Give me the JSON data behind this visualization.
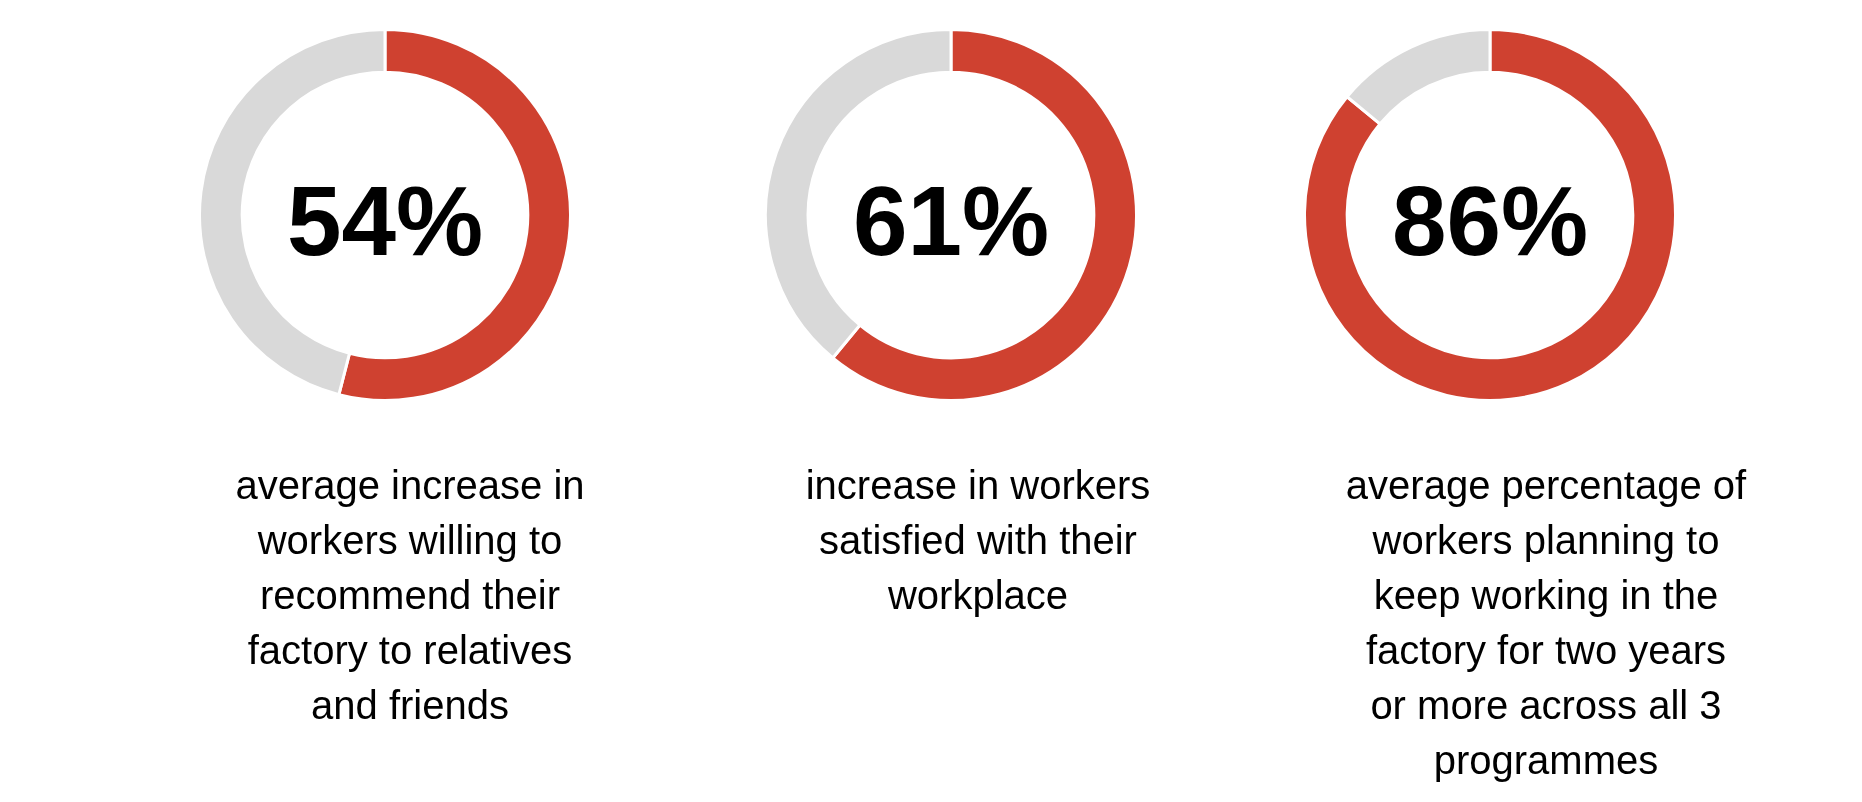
{
  "chart_data": [
    {
      "type": "donut",
      "title": "average increase in workers willing to recommend their factory to relatives and friends",
      "categories": [
        null,
        null
      ],
      "values": [
        54,
        46
      ],
      "colors": [
        "#cf4130",
        "#d9d9d9"
      ],
      "value_labels": [
        "54%",
        null
      ]
    },
    {
      "type": "donut",
      "title": "increase in workers satisfied with their workplace",
      "categories": [
        null,
        null
      ],
      "values": [
        61,
        39
      ],
      "colors": [
        "#cf4130",
        "#d9d9d9"
      ],
      "value_labels": [
        "61%",
        null
      ]
    },
    {
      "type": "donut",
      "title": "average percentage of workers planning to keep working in the factory for two years or more across all 3 programmes",
      "categories": [
        null,
        null
      ],
      "values": [
        86,
        14
      ],
      "colors": [
        "#cf4130",
        "#d9d9d9"
      ],
      "value_labels": [
        "86%",
        null
      ]
    }
  ]
}
